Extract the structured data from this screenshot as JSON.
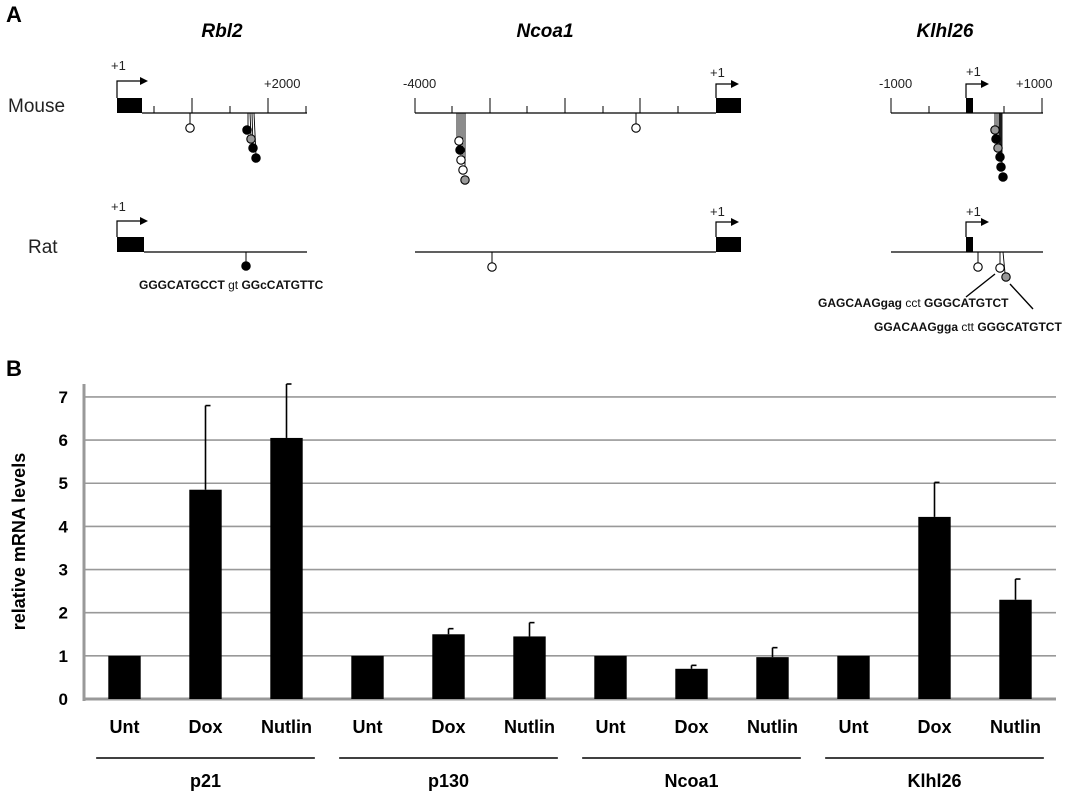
{
  "panel_a": {
    "letter": "A",
    "genes": [
      {
        "title": "Rbl2",
        "mouse": {
          "labels": [
            "+1",
            "+2000"
          ]
        },
        "rat": {
          "labels": [
            "+1"
          ],
          "sequence": [
            "GGGCATGCCT",
            " gt ",
            "GGcCATGTTC"
          ]
        }
      },
      {
        "title": "Ncoa1",
        "mouse": {
          "labels": [
            "-4000",
            "+1"
          ]
        },
        "rat": {
          "labels": [
            "+1"
          ]
        }
      },
      {
        "title": "Klhl26",
        "mouse": {
          "labels": [
            "-1000",
            "+1",
            "+1000"
          ]
        },
        "rat": {
          "labels": [
            "+1"
          ],
          "sequence_1": [
            "GAGCAAGgag",
            " cct ",
            "GGGCATGTCT"
          ],
          "sequence_2": [
            "GGACAAGgga",
            " ctt ",
            "GGGCATGTCT"
          ]
        }
      }
    ],
    "species": [
      "Mouse",
      "Rat"
    ],
    "site_colors": {
      "filled": "#000000",
      "gray": "#999999",
      "open": "#ffffff"
    }
  },
  "panel_b": {
    "letter": "B",
    "bar_color": "#000000",
    "grid_color": "#999999"
  },
  "chart_data": {
    "type": "bar",
    "ylabel": "relative mRNA levels",
    "ylim": [
      0,
      7.3
    ],
    "yticks": [
      0,
      1,
      2,
      3,
      4,
      5,
      6,
      7
    ],
    "grid": true,
    "groups": [
      {
        "name": "p21",
        "categories": [
          "Unt",
          "Dox",
          "Nutlin"
        ],
        "values": [
          1,
          4.85,
          6.05
        ],
        "errors": [
          0,
          1.95,
          1.25
        ]
      },
      {
        "name": "p130",
        "categories": [
          "Unt",
          "Dox",
          "Nutlin"
        ],
        "values": [
          1,
          1.5,
          1.45
        ],
        "errors": [
          0,
          0.13,
          0.32
        ]
      },
      {
        "name": "Ncoa1",
        "categories": [
          "Unt",
          "Dox",
          "Nutlin"
        ],
        "values": [
          1,
          0.7,
          0.97
        ],
        "errors": [
          0,
          0.08,
          0.22
        ]
      },
      {
        "name": "Klhl26",
        "categories": [
          "Unt",
          "Dox",
          "Nutlin"
        ],
        "values": [
          1,
          4.22,
          2.3
        ],
        "errors": [
          0,
          0.8,
          0.48
        ]
      }
    ]
  }
}
